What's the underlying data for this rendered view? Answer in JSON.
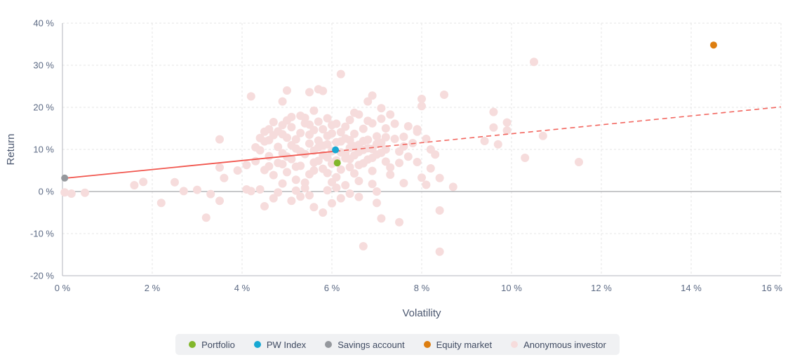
{
  "chart_data": {
    "type": "scatter",
    "title": "",
    "xlabel": "Volatility",
    "ylabel": "Return",
    "xlim": [
      0,
      16
    ],
    "ylim": [
      -20,
      40
    ],
    "x_tick_values": [
      0,
      2,
      4,
      6,
      8,
      10,
      12,
      14,
      16
    ],
    "x_tick_labels": [
      "0 %",
      "2 %",
      "4 %",
      "6 %",
      "8 %",
      "10 %",
      "12 %",
      "14 %",
      "16 %"
    ],
    "y_tick_values": [
      40,
      30,
      20,
      10,
      0,
      -10,
      -20
    ],
    "y_tick_labels": [
      "40 %",
      "30 %",
      "20 %",
      "10 %",
      "0 %",
      "-10 %",
      "-20 %"
    ],
    "grid": "dashed",
    "legend_position": "bottom",
    "zero_line": 0,
    "trend_line": {
      "color": "#f1564e",
      "x0": 0,
      "y0": 3.1,
      "x1": 16,
      "y1": 20.1,
      "solid_until_x": 6.08
    },
    "series": [
      {
        "name": "Portfolio",
        "color": "#82b72b",
        "radius": 5,
        "points": [
          [
            6.12,
            6.8
          ]
        ]
      },
      {
        "name": "PW Index",
        "color": "#17a8d3",
        "radius": 5,
        "points": [
          [
            6.08,
            9.9
          ]
        ]
      },
      {
        "name": "Savings account",
        "color": "#95989d",
        "radius": 5,
        "points": [
          [
            0.05,
            3.2
          ]
        ]
      },
      {
        "name": "Equity market",
        "color": "#dd7e10",
        "radius": 5,
        "points": [
          [
            14.5,
            34.8
          ]
        ]
      },
      {
        "name": "Anonymous investor",
        "color": "#f6dcdc",
        "radius": 6,
        "points": [
          [
            0.05,
            -0.2
          ],
          [
            0.2,
            -0.5
          ],
          [
            0.5,
            -0.3
          ],
          [
            1.6,
            1.5
          ],
          [
            1.8,
            2.3
          ],
          [
            2.2,
            -2.7
          ],
          [
            2.5,
            2.2
          ],
          [
            2.7,
            0.1
          ],
          [
            3.0,
            0.4
          ],
          [
            3.3,
            -0.6
          ],
          [
            3.5,
            -2.2
          ],
          [
            3.2,
            -6.2
          ],
          [
            3.5,
            5.7
          ],
          [
            3.6,
            3.2
          ],
          [
            3.5,
            12.4
          ],
          [
            3.9,
            5.0
          ],
          [
            4.1,
            6.3
          ],
          [
            4.2,
            0.1
          ],
          [
            4.2,
            22.6
          ],
          [
            4.5,
            14.2
          ],
          [
            4.6,
            14.8
          ],
          [
            4.9,
            15.8
          ],
          [
            5.1,
            17.7
          ],
          [
            5.4,
            17.5
          ],
          [
            5.6,
            19.2
          ],
          [
            5.0,
            24.0
          ],
          [
            5.5,
            23.6
          ],
          [
            5.7,
            24.3
          ],
          [
            5.8,
            23.9
          ],
          [
            4.9,
            21.4
          ],
          [
            6.2,
            27.9
          ],
          [
            6.9,
            22.8
          ],
          [
            6.8,
            21.4
          ],
          [
            7.1,
            19.8
          ],
          [
            7.3,
            18.3
          ],
          [
            6.5,
            18.7
          ],
          [
            6.6,
            18.3
          ],
          [
            8.0,
            22.0
          ],
          [
            8.0,
            20.3
          ],
          [
            8.5,
            23.0
          ],
          [
            10.5,
            30.8
          ],
          [
            7.4,
            16.1
          ],
          [
            7.7,
            15.5
          ],
          [
            7.9,
            14.8
          ],
          [
            7.9,
            14.2
          ],
          [
            8.1,
            12.5
          ],
          [
            9.6,
            15.2
          ],
          [
            9.9,
            14.5
          ],
          [
            9.4,
            12.0
          ],
          [
            9.7,
            11.2
          ],
          [
            9.6,
            18.9
          ],
          [
            9.9,
            16.4
          ],
          [
            10.7,
            13.2
          ],
          [
            10.3,
            8.0
          ],
          [
            11.5,
            7.0
          ],
          [
            7.5,
            9.5
          ],
          [
            7.7,
            8.3
          ],
          [
            7.5,
            6.8
          ],
          [
            7.3,
            5.7
          ],
          [
            7.3,
            4.0
          ],
          [
            8.0,
            3.3
          ],
          [
            8.4,
            3.2
          ],
          [
            8.1,
            1.6
          ],
          [
            8.7,
            1.1
          ],
          [
            7.0,
            0.0
          ],
          [
            4.1,
            0.5
          ],
          [
            4.4,
            0.5
          ],
          [
            4.7,
            -1.6
          ],
          [
            5.5,
            -0.9
          ],
          [
            5.6,
            -3.7
          ],
          [
            5.8,
            -5.0
          ],
          [
            6.0,
            -2.8
          ],
          [
            6.2,
            -1.6
          ],
          [
            6.6,
            -1.3
          ],
          [
            7.0,
            -2.7
          ],
          [
            4.5,
            -3.5
          ],
          [
            7.1,
            -6.4
          ],
          [
            7.5,
            -7.3
          ],
          [
            8.4,
            -4.5
          ],
          [
            6.7,
            -13.0
          ],
          [
            8.4,
            -14.3
          ],
          [
            4.3,
            7.2
          ],
          [
            4.4,
            9.8
          ],
          [
            4.5,
            5.1
          ],
          [
            4.5,
            11.9
          ],
          [
            4.6,
            8.4
          ],
          [
            4.7,
            3.9
          ],
          [
            4.7,
            13.4
          ],
          [
            4.8,
            6.8
          ],
          [
            4.8,
            10.6
          ],
          [
            4.9,
            1.9
          ],
          [
            4.9,
            9.1
          ],
          [
            5.0,
            12.8
          ],
          [
            5.0,
            4.6
          ],
          [
            5.1,
            7.7
          ],
          [
            5.1,
            15.3
          ],
          [
            5.2,
            10.2
          ],
          [
            5.2,
            2.8
          ],
          [
            5.3,
            13.9
          ],
          [
            5.3,
            6.1
          ],
          [
            5.4,
            8.9
          ],
          [
            5.4,
            16.2
          ],
          [
            5.5,
            11.4
          ],
          [
            5.5,
            4.1
          ],
          [
            5.6,
            9.7
          ],
          [
            5.6,
            14.6
          ],
          [
            5.7,
            7.3
          ],
          [
            5.7,
            12.1
          ],
          [
            5.8,
            10.9
          ],
          [
            5.8,
            5.4
          ],
          [
            5.9,
            13.2
          ],
          [
            5.9,
            8.1
          ],
          [
            6.0,
            15.8
          ],
          [
            6.0,
            6.6
          ],
          [
            6.1,
            11.7
          ],
          [
            6.1,
            3.4
          ],
          [
            6.2,
            9.3
          ],
          [
            6.2,
            14.1
          ],
          [
            6.3,
            7.9
          ],
          [
            6.3,
            12.6
          ],
          [
            6.4,
            10.4
          ],
          [
            6.4,
            5.8
          ],
          [
            6.5,
            13.7
          ],
          [
            6.5,
            8.6
          ],
          [
            6.6,
            11.1
          ],
          [
            6.6,
            6.3
          ],
          [
            6.7,
            9.9
          ],
          [
            6.7,
            14.9
          ],
          [
            6.8,
            7.6
          ],
          [
            6.8,
            12.3
          ],
          [
            6.9,
            10.1
          ],
          [
            6.9,
            4.9
          ],
          [
            7.0,
            13.1
          ],
          [
            7.0,
            8.8
          ],
          [
            7.1,
            11.6
          ],
          [
            7.2,
            7.1
          ],
          [
            7.2,
            12.9
          ],
          [
            4.4,
            12.7
          ],
          [
            4.6,
            6.0
          ],
          [
            4.8,
            14.3
          ],
          [
            5.0,
            8.3
          ],
          [
            5.0,
            16.9
          ],
          [
            5.2,
            5.9
          ],
          [
            5.2,
            12.4
          ],
          [
            5.3,
            9.5
          ],
          [
            5.4,
            2.1
          ],
          [
            5.5,
            13.5
          ],
          [
            5.6,
            6.9
          ],
          [
            5.7,
            10.5
          ],
          [
            5.7,
            16.6
          ],
          [
            5.8,
            8.7
          ],
          [
            5.8,
            14.8
          ],
          [
            5.9,
            4.4
          ],
          [
            5.9,
            11.2
          ],
          [
            6.0,
            9.6
          ],
          [
            6.0,
            13.8
          ],
          [
            6.1,
            7.4
          ],
          [
            6.1,
            16.1
          ],
          [
            6.2,
            5.2
          ],
          [
            6.2,
            11.9
          ],
          [
            6.3,
            9.0
          ],
          [
            6.3,
            15.4
          ],
          [
            6.4,
            7.7
          ],
          [
            6.4,
            12.2
          ],
          [
            6.5,
            4.3
          ],
          [
            6.5,
            10.8
          ],
          [
            6.6,
            9.4
          ],
          [
            6.7,
            6.7
          ],
          [
            6.7,
            12.0
          ],
          [
            6.8,
            10.3
          ],
          [
            6.9,
            8.0
          ],
          [
            7.0,
            11.3
          ],
          [
            7.1,
            9.2
          ],
          [
            5.3,
            18.0
          ],
          [
            5.9,
            17.4
          ],
          [
            6.4,
            17.0
          ],
          [
            4.7,
            16.5
          ],
          [
            5.1,
            11.0
          ],
          [
            4.3,
            10.5
          ],
          [
            4.6,
            12.2
          ],
          [
            4.9,
            13.6
          ],
          [
            5.5,
            15.9
          ],
          [
            6.0,
            2.2
          ],
          [
            6.3,
            1.5
          ],
          [
            5.4,
            0.8
          ],
          [
            5.9,
            0.3
          ],
          [
            6.6,
            2.5
          ],
          [
            6.1,
            0.9
          ],
          [
            5.2,
            0.2
          ],
          [
            4.9,
            6.5
          ],
          [
            5.6,
            5.0
          ],
          [
            6.9,
            16.2
          ],
          [
            7.2,
            15.0
          ],
          [
            7.1,
            17.3
          ],
          [
            6.8,
            16.8
          ],
          [
            7.6,
            13.0
          ],
          [
            7.8,
            11.5
          ],
          [
            7.6,
            10.7
          ],
          [
            8.2,
            10.0
          ],
          [
            8.3,
            8.8
          ],
          [
            7.9,
            7.0
          ],
          [
            8.2,
            5.5
          ],
          [
            7.6,
            2.0
          ],
          [
            6.4,
            -0.5
          ],
          [
            5.3,
            -1.2
          ],
          [
            4.8,
            -0.2
          ],
          [
            5.1,
            -2.2
          ],
          [
            6.9,
            1.8
          ],
          [
            7.4,
            12.5
          ],
          [
            7.2,
            10.0
          ]
        ]
      }
    ],
    "colors": {
      "grid": "#e4e4e6",
      "zero_line": "#8f9195",
      "axis_line": "#b3b6bc",
      "tick_text": "#5c6a84",
      "axis_title_text": "#4c5870",
      "legend_background": "#f0f1f3",
      "legend_text": "#3f4a61"
    }
  }
}
